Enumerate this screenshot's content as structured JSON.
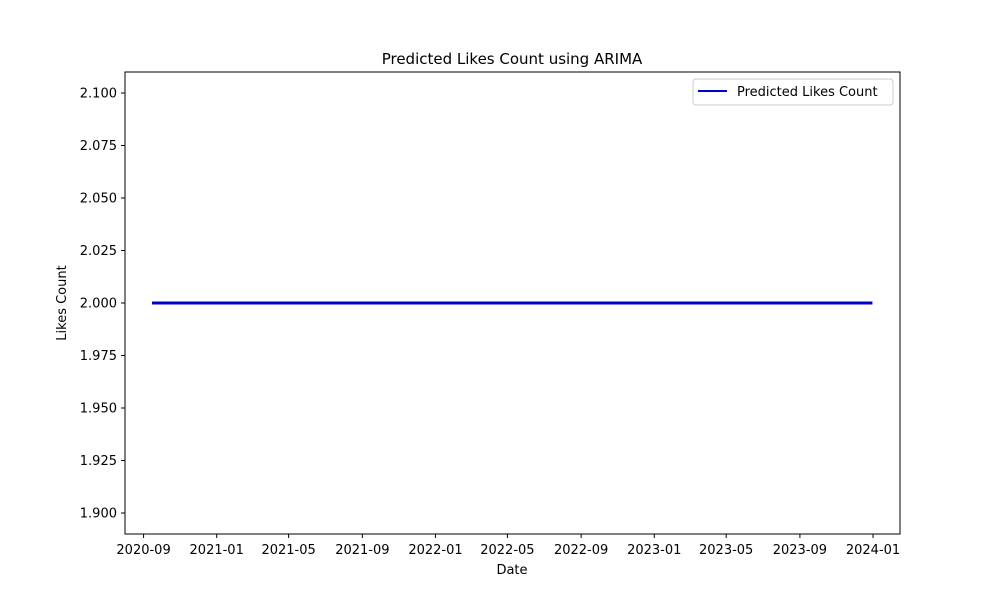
{
  "chart_data": {
    "type": "line",
    "title": "Predicted Likes Count using ARIMA",
    "xlabel": "Date",
    "ylabel": "Likes Count",
    "x_axis_type": "date",
    "xlim": [
      "2020-08-01",
      "2024-02-15"
    ],
    "ylim": [
      1.89,
      2.11
    ],
    "x_ticks": [
      "2020-09",
      "2021-01",
      "2021-05",
      "2021-09",
      "2022-01",
      "2022-05",
      "2022-09",
      "2023-01",
      "2023-05",
      "2023-09",
      "2024-01"
    ],
    "y_ticks": [
      "1.900",
      "1.925",
      "1.950",
      "1.975",
      "2.000",
      "2.025",
      "2.050",
      "2.075",
      "2.100"
    ],
    "grid": false,
    "legend": {
      "placement": "top-right"
    },
    "series": [
      {
        "name": "Predicted Likes Count",
        "color": "#0000cc",
        "x": [
          "2020-09-15",
          "2023-12-31"
        ],
        "y": [
          2.0,
          2.0
        ]
      }
    ]
  }
}
